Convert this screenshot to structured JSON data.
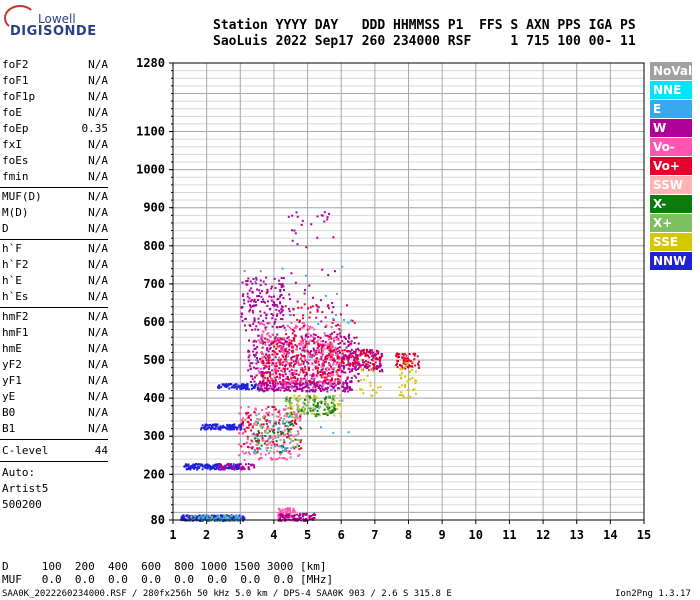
{
  "logo": {
    "line1": "Lowell",
    "line2": "DIGISONDE"
  },
  "header": {
    "line1": "Station YYYY DAY   DDD HHMMSS P1  FFS S AXN PPS IGA PS",
    "line2": "SaoLuis 2022 Sep17 260 234000 RSF     1 715 100 00- 11"
  },
  "params": {
    "group1": [
      {
        "name": "foF2",
        "value": "N/A"
      },
      {
        "name": "foF1",
        "value": "N/A"
      },
      {
        "name": "foF1p",
        "value": "N/A"
      },
      {
        "name": "foE",
        "value": "N/A"
      },
      {
        "name": "foEp",
        "value": "0.35"
      },
      {
        "name": "fxI",
        "value": "N/A"
      },
      {
        "name": "foEs",
        "value": "N/A"
      },
      {
        "name": "fmin",
        "value": "N/A"
      }
    ],
    "group2": [
      {
        "name": "MUF(D)",
        "value": "N/A"
      },
      {
        "name": "M(D)",
        "value": "N/A"
      },
      {
        "name": "D",
        "value": "N/A"
      }
    ],
    "group3": [
      {
        "name": "h`F",
        "value": "N/A"
      },
      {
        "name": "h`F2",
        "value": "N/A"
      },
      {
        "name": "h`E",
        "value": "N/A"
      },
      {
        "name": "h`Es",
        "value": "N/A"
      }
    ],
    "group4": [
      {
        "name": "hmF2",
        "value": "N/A"
      },
      {
        "name": "hmF1",
        "value": "N/A"
      },
      {
        "name": "hmE",
        "value": "N/A"
      },
      {
        "name": "yF2",
        "value": "N/A"
      },
      {
        "name": "yF1",
        "value": "N/A"
      },
      {
        "name": "yE",
        "value": "N/A"
      },
      {
        "name": "B0",
        "value": "N/A"
      },
      {
        "name": "B1",
        "value": "N/A"
      }
    ],
    "clevel": {
      "name": "C-level",
      "value": "44"
    },
    "auto": [
      "Auto:",
      "Artist5",
      "500200"
    ]
  },
  "legend": [
    {
      "label": "NoVal",
      "color": "#a0a0a0"
    },
    {
      "label": "NNE",
      "color": "#00e5ff"
    },
    {
      "label": "E",
      "color": "#3aa8f0"
    },
    {
      "label": "W",
      "color": "#b0009a"
    },
    {
      "label": "Vo-",
      "color": "#ff55b0"
    },
    {
      "label": "Vo+",
      "color": "#e8002a"
    },
    {
      "label": "SSW",
      "color": "#ffb3b3"
    },
    {
      "label": "X-",
      "color": "#0c7a0c"
    },
    {
      "label": "X+",
      "color": "#7cc060"
    },
    {
      "label": "SSE",
      "color": "#d6c800"
    },
    {
      "label": "NNW",
      "color": "#2020d8"
    }
  ],
  "footer": {
    "d_row": "D     100  200  400  600  800 1000 1500 3000 [km]",
    "muf_row": "MUF   0.0  0.0  0.0  0.0  0.0  0.0  0.0  0.0 [MHz]",
    "file_info": "SAA0K_2022260234000.RSF / 280fx256h 50 kHz 5.0 km / DPS-4 SAA0K 903 / 2.6 S 315.8 E",
    "version": "Ion2Png 1.3.17"
  },
  "chart_data": {
    "type": "scatter",
    "title": "",
    "xlabel": "",
    "ylabel": "",
    "xlim": [
      1,
      15
    ],
    "ylim": [
      80,
      1280
    ],
    "x_ticks": [
      1,
      2,
      3,
      4,
      5,
      6,
      7,
      8,
      9,
      10,
      11,
      12,
      13,
      14,
      15
    ],
    "y_major_ticks": [
      80,
      200,
      300,
      400,
      500,
      600,
      700,
      800,
      900,
      1000,
      1100,
      1280
    ],
    "grid": true,
    "clusters": [
      {
        "x": [
          1.2,
          3.1
        ],
        "y": [
          80,
          95
        ],
        "color": "#2020d8",
        "density": 220
      },
      {
        "x": [
          1.4,
          3.0
        ],
        "y": [
          80,
          95
        ],
        "color": "#7cc060",
        "density": 40
      },
      {
        "x": [
          1.6,
          3.0
        ],
        "y": [
          80,
          95
        ],
        "color": "#3aa8f0",
        "density": 40
      },
      {
        "x": [
          4.1,
          4.6
        ],
        "y": [
          80,
          115
        ],
        "color": "#ff55b0",
        "density": 80
      },
      {
        "x": [
          4.1,
          5.2
        ],
        "y": [
          80,
          100
        ],
        "color": "#b0009a",
        "density": 80
      },
      {
        "x": [
          1.3,
          3.0
        ],
        "y": [
          215,
          230
        ],
        "color": "#2020d8",
        "density": 160
      },
      {
        "x": [
          2.3,
          3.4
        ],
        "y": [
          215,
          230
        ],
        "color": "#b0009a",
        "density": 50
      },
      {
        "x": [
          1.8,
          3.0
        ],
        "y": [
          320,
          335
        ],
        "color": "#2020d8",
        "density": 110
      },
      {
        "x": [
          2.9,
          4.8
        ],
        "y": [
          240,
          380
        ],
        "color": "#ff55b0",
        "density": 170
      },
      {
        "x": [
          3.0,
          4.8
        ],
        "y": [
          260,
          380
        ],
        "color": "#e8002a",
        "density": 90
      },
      {
        "x": [
          3.4,
          4.8
        ],
        "y": [
          260,
          340
        ],
        "color": "#0c7a0c",
        "density": 40
      },
      {
        "x": [
          3.4,
          4.8
        ],
        "y": [
          260,
          360
        ],
        "color": "#7cc060",
        "density": 40
      },
      {
        "x": [
          3.3,
          4.5
        ],
        "y": [
          260,
          360
        ],
        "color": "#3aa8f0",
        "density": 30
      },
      {
        "x": [
          4.3,
          6.0
        ],
        "y": [
          355,
          410
        ],
        "color": "#d6c800",
        "density": 60
      },
      {
        "x": [
          4.3,
          5.8
        ],
        "y": [
          355,
          410
        ],
        "color": "#0c7a0c",
        "density": 60
      },
      {
        "x": [
          4.3,
          5.8
        ],
        "y": [
          355,
          410
        ],
        "color": "#7cc060",
        "density": 50
      },
      {
        "x": [
          2.3,
          3.6
        ],
        "y": [
          425,
          440
        ],
        "color": "#2020d8",
        "density": 90
      },
      {
        "x": [
          3.5,
          6.3
        ],
        "y": [
          420,
          445
        ],
        "color": "#b0009a",
        "density": 220
      },
      {
        "x": [
          3.2,
          6.5
        ],
        "y": [
          440,
          570
        ],
        "color": "#b0009a",
        "density": 380
      },
      {
        "x": [
          3.6,
          6.0
        ],
        "y": [
          440,
          560
        ],
        "color": "#e8002a",
        "density": 280
      },
      {
        "x": [
          3.5,
          6.0
        ],
        "y": [
          430,
          600
        ],
        "color": "#ff55b0",
        "density": 240
      },
      {
        "x": [
          6.0,
          7.2
        ],
        "y": [
          480,
          530
        ],
        "color": "#e8002a",
        "density": 100
      },
      {
        "x": [
          6.0,
          7.2
        ],
        "y": [
          470,
          530
        ],
        "color": "#b0009a",
        "density": 80
      },
      {
        "x": [
          7.6,
          8.3
        ],
        "y": [
          480,
          520
        ],
        "color": "#e8002a",
        "density": 60
      },
      {
        "x": [
          7.7,
          8.2
        ],
        "y": [
          400,
          500
        ],
        "color": "#d6c800",
        "density": 40
      },
      {
        "x": [
          3.0,
          4.3
        ],
        "y": [
          580,
          720
        ],
        "color": "#b0009a",
        "density": 160
      },
      {
        "x": [
          4.4,
          5.8
        ],
        "y": [
          560,
          900
        ],
        "color": "#b0009a",
        "density": 60
      },
      {
        "x": [
          4.3,
          6.5
        ],
        "y": [
          560,
          650
        ],
        "color": "#e8002a",
        "density": 40
      },
      {
        "x": [
          3.0,
          6.5
        ],
        "y": [
          300,
          750
        ],
        "color": "#3aa8f0",
        "density": 30
      },
      {
        "x": [
          6.5,
          7.2
        ],
        "y": [
          380,
          480
        ],
        "color": "#d6c800",
        "density": 20
      }
    ]
  }
}
